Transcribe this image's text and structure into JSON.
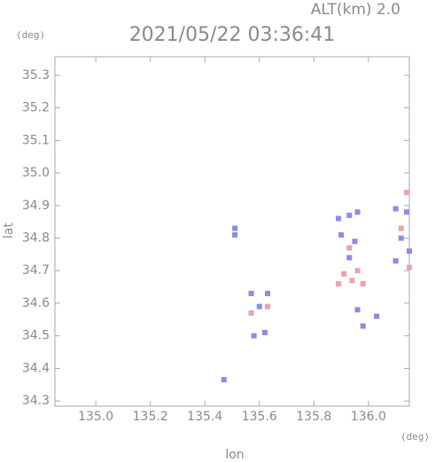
{
  "header": {
    "altitude": "ALT(km) 2.0",
    "y_unit": "(deg)",
    "x_unit": "(deg)"
  },
  "chart_data": {
    "type": "scatter",
    "title": "2021/05/22 03:36:41",
    "x_label": "lon",
    "y_label": "lat",
    "xlim": [
      134.85,
      136.15
    ],
    "ylim": [
      34.284,
      35.357
    ],
    "xticks": [
      {
        "value": 135.0,
        "label": "135.0"
      },
      135.2,
      135.4,
      135.6,
      135.8,
      {
        "value": 136.0,
        "label": "136.0"
      }
    ],
    "yticks": [
      34.3,
      34.4,
      34.5,
      34.6,
      34.7,
      34.8,
      34.9,
      {
        "value": 35.0,
        "label": "35.0"
      },
      35.1,
      35.2,
      35.3
    ],
    "series": [
      {
        "color": "#8c8ce6",
        "x": [
          135.51,
          135.51,
          135.57,
          135.63,
          135.6,
          135.58,
          135.62,
          135.47,
          135.89,
          135.93,
          135.96,
          135.9,
          135.93,
          135.96,
          135.98,
          136.03,
          136.1,
          136.14,
          136.12,
          136.15,
          136.1,
          135.95
        ],
        "y": [
          34.83,
          34.81,
          34.63,
          34.63,
          34.59,
          34.5,
          34.51,
          34.365,
          34.86,
          34.87,
          34.88,
          34.81,
          34.74,
          34.58,
          34.53,
          34.56,
          34.89,
          34.88,
          34.8,
          34.76,
          34.73,
          34.79
        ]
      },
      {
        "color": "#f0a0ac",
        "x": [
          135.57,
          135.63,
          135.93,
          135.91,
          135.94,
          135.89,
          135.96,
          135.98,
          136.14,
          136.12,
          136.15
        ],
        "y": [
          34.57,
          34.59,
          34.77,
          34.69,
          34.67,
          34.66,
          34.7,
          34.66,
          34.94,
          34.83,
          34.71
        ]
      }
    ]
  }
}
